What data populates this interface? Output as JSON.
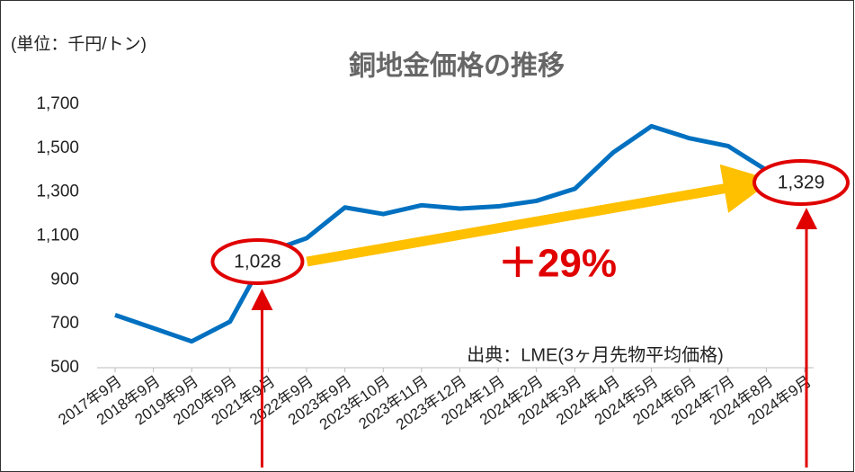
{
  "chart_data": {
    "type": "line",
    "title": "銅地金価格の推移",
    "unit_label": "(単位：千円/トン)",
    "source": "出典：LME(3ヶ月先物平均価格)",
    "change_label": "＋29%",
    "categories": [
      "2017年9月",
      "2018年9月",
      "2019年9月",
      "2020年9月",
      "2021年9月",
      "2022年9月",
      "2023年9月",
      "2023年10月",
      "2023年11月",
      "2023年12月",
      "2024年1月",
      "2024年2月",
      "2024年3月",
      "2024年4月",
      "2024年5月",
      "2024年6月",
      "2024年7月",
      "2024年8月",
      "2024年9月"
    ],
    "values": [
      740,
      680,
      620,
      710,
      1028,
      1090,
      1230,
      1200,
      1240,
      1225,
      1235,
      1260,
      1315,
      1480,
      1600,
      1545,
      1510,
      1400,
      1329
    ],
    "value_labels": [
      null,
      null,
      null,
      null,
      "1,028",
      null,
      null,
      null,
      null,
      null,
      null,
      null,
      null,
      null,
      null,
      null,
      null,
      null,
      "1,329"
    ],
    "color": "#0070c0",
    "ylim": [
      500,
      1700
    ],
    "yticks": [
      500,
      700,
      900,
      {
        "value": 1100,
        "label": "1,100"
      },
      {
        "value": 1300,
        "label": "1,300"
      },
      {
        "value": 1500,
        "label": "1,500"
      },
      {
        "value": 1700,
        "label": "1,700"
      }
    ],
    "grid": false
  }
}
